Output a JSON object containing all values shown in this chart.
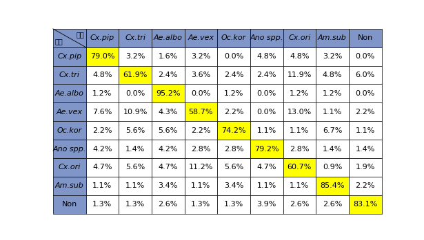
{
  "col_labels": [
    "Cx.pip",
    "Cx.tri",
    "Ae.albo",
    "Ae.vex",
    "Oc.kor",
    "Ano spp.",
    "Cx.ori",
    "Am.sub",
    "Non"
  ],
  "row_labels": [
    "Cx.pip",
    "Cx.tri",
    "Ae.albo",
    "Ae.vex",
    "Oc.kor",
    "Ano spp.",
    "Cx.ori",
    "Am.sub",
    "Non"
  ],
  "values": [
    [
      "79.0%",
      "3.2%",
      "1.6%",
      "3.2%",
      "0.0%",
      "4.8%",
      "4.8%",
      "3.2%",
      "0.0%"
    ],
    [
      "4.8%",
      "61.9%",
      "2.4%",
      "3.6%",
      "2.4%",
      "2.4%",
      "11.9%",
      "4.8%",
      "6.0%"
    ],
    [
      "1.2%",
      "0.0%",
      "95.2%",
      "0.0%",
      "1.2%",
      "0.0%",
      "1.2%",
      "1.2%",
      "0.0%"
    ],
    [
      "7.6%",
      "10.9%",
      "4.3%",
      "58.7%",
      "2.2%",
      "0.0%",
      "13.0%",
      "1.1%",
      "2.2%"
    ],
    [
      "2.2%",
      "5.6%",
      "5.6%",
      "2.2%",
      "74.2%",
      "1.1%",
      "1.1%",
      "6.7%",
      "1.1%"
    ],
    [
      "4.2%",
      "1.4%",
      "4.2%",
      "2.8%",
      "2.8%",
      "79.2%",
      "2.8%",
      "1.4%",
      "1.4%"
    ],
    [
      "4.7%",
      "5.6%",
      "4.7%",
      "11.2%",
      "5.6%",
      "4.7%",
      "60.7%",
      "0.9%",
      "1.9%"
    ],
    [
      "1.1%",
      "1.1%",
      "3.4%",
      "1.1%",
      "3.4%",
      "1.1%",
      "1.1%",
      "85.4%",
      "2.2%"
    ],
    [
      "1.3%",
      "1.3%",
      "2.6%",
      "1.3%",
      "1.3%",
      "3.9%",
      "2.6%",
      "2.6%",
      "83.1%"
    ]
  ],
  "diagonal_color": "#FFFF00",
  "header_bg_color": "#8096C8",
  "cell_bg_color": "#FFFFFF",
  "grid_color": "#000000",
  "header_text_color": "#000000",
  "cell_text_color": "#000000",
  "corner_label_top": "예측",
  "corner_label_bottom": "실제",
  "figsize": [
    6.15,
    3.49
  ],
  "dpi": 100,
  "fontsize": 8.0,
  "header_fontsize": 8.0
}
